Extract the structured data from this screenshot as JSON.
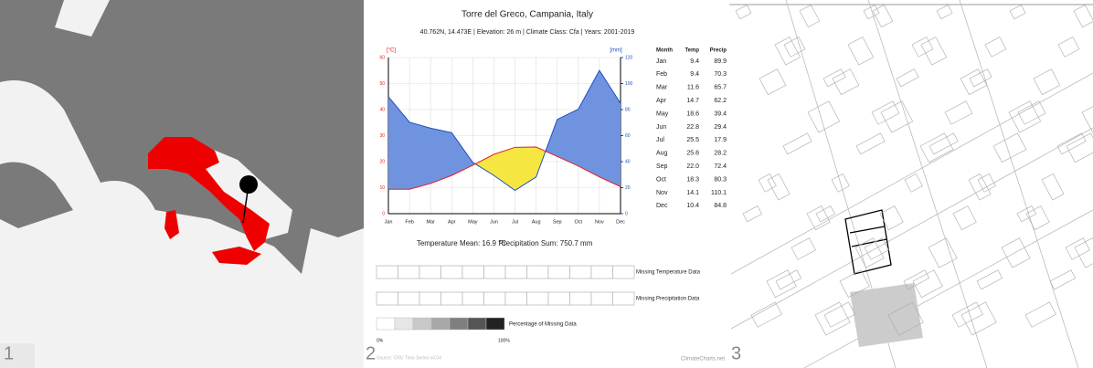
{
  "panels": [
    "1",
    "2",
    "3"
  ],
  "chart_data": {
    "type": "climate",
    "title": "Torre del Greco, Campania, Italy",
    "subtitle": "40.762N, 14.473E | Elevation: 26 m | Climate Class: Cfa | Years: 2001-2019",
    "ylabel": "[°C]",
    "y2label": "[mm]",
    "categories": [
      "Jan",
      "Feb",
      "Mar",
      "Apr",
      "May",
      "Jun",
      "Jul",
      "Aug",
      "Sep",
      "Oct",
      "Nov",
      "Dec"
    ],
    "x_header": "Month",
    "series": [
      {
        "name": "Temp",
        "color": "#e02020",
        "values": [
          9.4,
          9.4,
          11.6,
          14.7,
          18.6,
          22.8,
          25.5,
          25.6,
          22.0,
          18.3,
          14.1,
          10.4
        ],
        "value_labels": [
          "9.4",
          "9.4",
          "11.6",
          "14.7",
          "18.6",
          "22.8",
          "25.5",
          "25.6",
          "22.0",
          "18.3",
          "14.1",
          "10.4"
        ]
      },
      {
        "name": "Precip",
        "color": "#2050c0",
        "axis": "y2",
        "values": [
          89.9,
          70.3,
          65.7,
          62.2,
          39.4,
          29.4,
          17.9,
          28.2,
          72.4,
          80.3,
          110.1,
          84.8
        ]
      }
    ],
    "ylim": [
      0,
      60
    ],
    "yticks": [
      0,
      10,
      20,
      30,
      40,
      50,
      60
    ],
    "y2lim": [
      0,
      120
    ],
    "y2ticks": [
      0,
      20,
      40,
      60,
      80,
      100,
      120
    ],
    "wet_color": "#7093e0",
    "dry_color": "#f5e642",
    "temperature_mean": "Temperature Mean: 16.9 °C",
    "precipitation_sum": "Precipitation Sum: 750.7 mm",
    "missing_temperature": "Missing Temperature Data",
    "missing_precipitation": "Missing Precipitation Data",
    "missing_percentage": "Percentage of Missing Data",
    "scale_min": "0%",
    "scale_max": "100%",
    "source": "Source: CRU Time Series v4.04",
    "credit": "ClimateCharts.net"
  }
}
